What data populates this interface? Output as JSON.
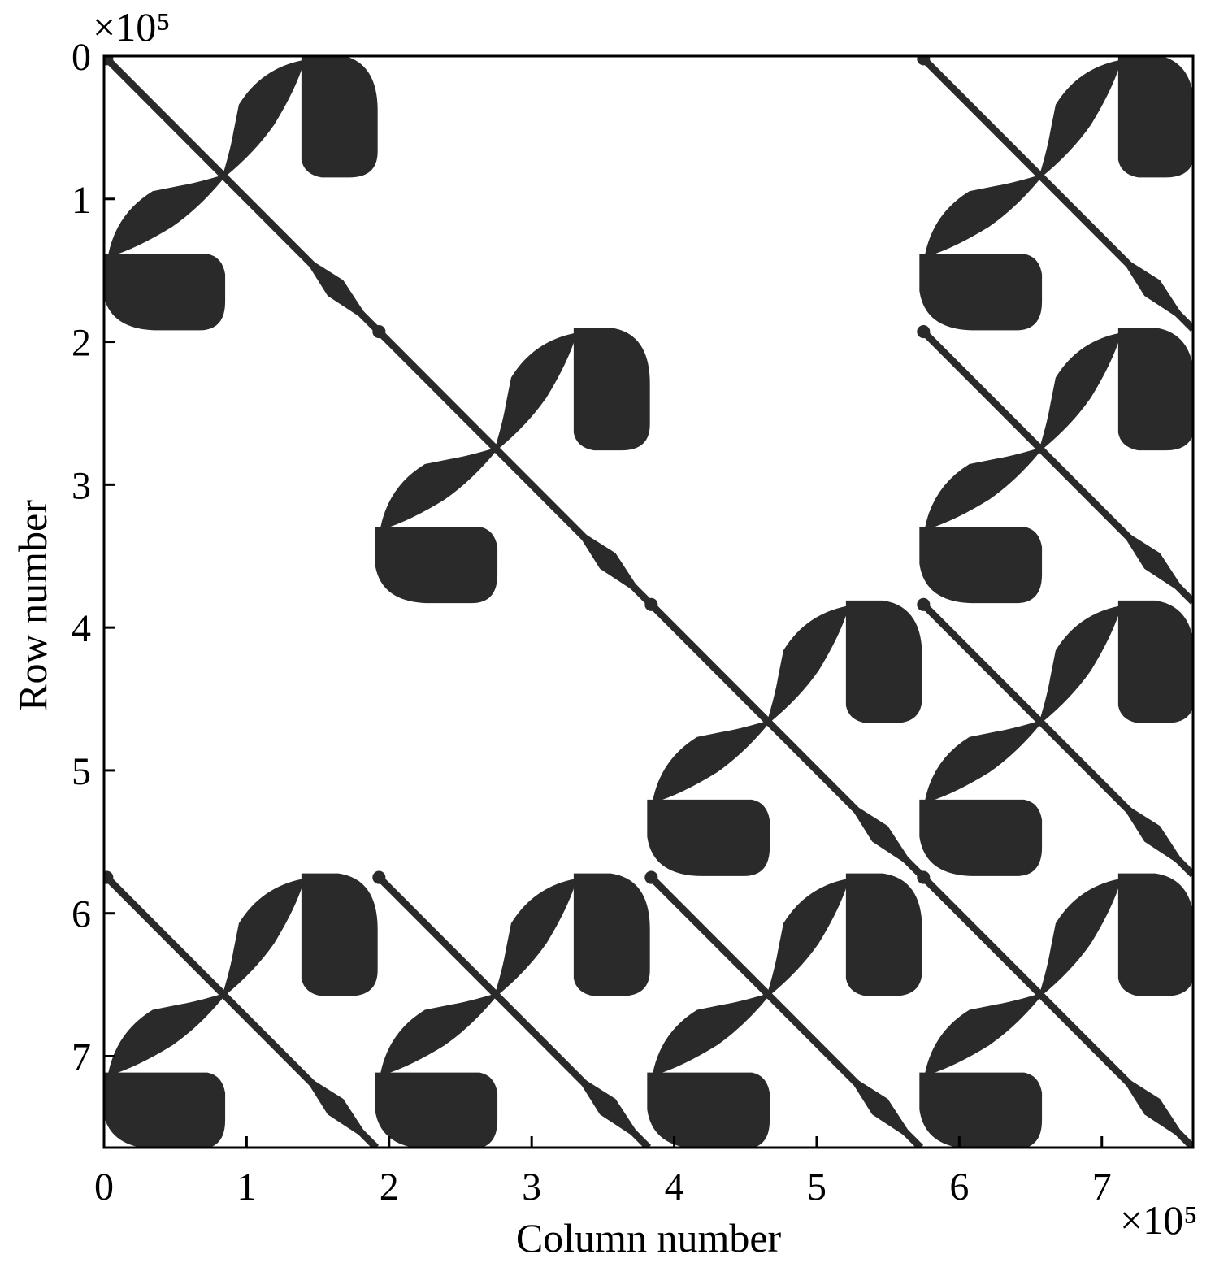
{
  "chart_data": {
    "type": "spy",
    "xlabel": "Column number",
    "ylabel": "Row number",
    "x_multiplier": "×10⁵",
    "y_multiplier": "×10⁵",
    "xlim": [
      0,
      7.64
    ],
    "ylim": [
      0,
      7.64
    ],
    "xticks": [
      0,
      1,
      2,
      3,
      4,
      5,
      6,
      7
    ],
    "yticks": [
      0,
      1,
      2,
      3,
      4,
      5,
      6,
      7
    ],
    "y_reversed": true,
    "color": "#2a2a2a",
    "block_size": 1.91,
    "blocks": [
      {
        "x": 0,
        "y": 0
      },
      {
        "x": 1.91,
        "y": 1.91
      },
      {
        "x": 3.82,
        "y": 3.82
      },
      {
        "x": 5.73,
        "y": 5.73
      },
      {
        "x": 5.73,
        "y": 0
      },
      {
        "x": 5.73,
        "y": 1.91
      },
      {
        "x": 5.73,
        "y": 3.82
      },
      {
        "x": 0,
        "y": 5.73
      },
      {
        "x": 1.91,
        "y": 5.73
      },
      {
        "x": 3.82,
        "y": 5.73
      }
    ]
  }
}
